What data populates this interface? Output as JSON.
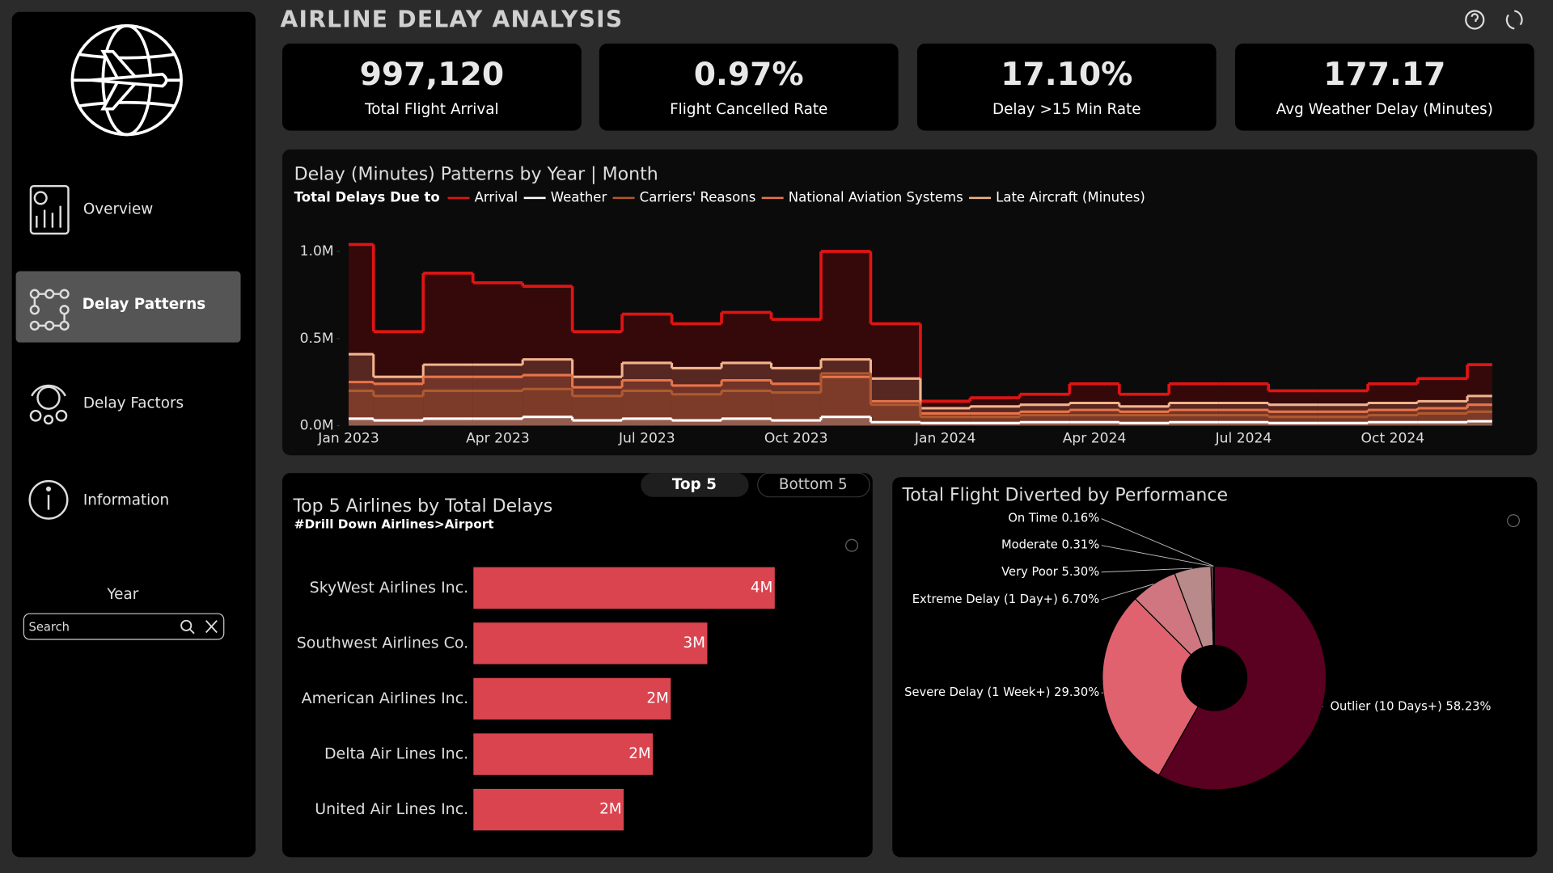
{
  "header": {
    "title": "AIRLINE DELAY ANALYSIS"
  },
  "kpis": [
    {
      "value": "997,120",
      "label": "Total Flight Arrival"
    },
    {
      "value": "0.97%",
      "label": "Flight Cancelled Rate"
    },
    {
      "value": "17.10%",
      "label": "Delay >15 Min Rate"
    },
    {
      "value": "177.17",
      "label": "Avg Weather Delay (Minutes)"
    }
  ],
  "nav": [
    "Overview",
    "Delay Patterns",
    "Delay Factors",
    "Information"
  ],
  "active_nav": 1,
  "filter": {
    "label": "Year",
    "placeholder": "Search"
  },
  "toggle": [
    "Top 5",
    "Bottom 5"
  ],
  "chart_data": [
    {
      "type": "line",
      "step": "mid",
      "title": "Delay (Minutes) Patterns by Year | Month",
      "legend_title": "Total Delays Due to",
      "x": [
        "Jan 2023",
        null,
        null,
        "Apr 2023",
        null,
        null,
        "Jul 2023",
        null,
        null,
        "Oct 2023",
        null,
        null,
        "Jan 2024",
        null,
        null,
        "Apr 2024",
        null,
        null,
        "Jul 2024",
        null,
        null,
        "Oct 2024",
        null,
        null
      ],
      "ylim": [
        0,
        1100000
      ],
      "yticks": [
        {
          "value": 0,
          "label": "0.0M"
        },
        {
          "value": 500000,
          "label": "0.5M"
        },
        {
          "value": 1000000,
          "label": "1.0M"
        }
      ],
      "series": [
        {
          "name": "Arrival",
          "color": "#e01414",
          "values": [
            1040000,
            540000,
            875000,
            820000,
            800000,
            540000,
            640000,
            585000,
            650000,
            610000,
            1000000,
            585000,
            140000,
            160000,
            180000,
            240000,
            180000,
            240000,
            240000,
            200000,
            200000,
            240000,
            270000,
            350000
          ]
        },
        {
          "name": "Weather",
          "color": "#ffffff",
          "values": [
            40000,
            30000,
            40000,
            40000,
            50000,
            30000,
            40000,
            30000,
            40000,
            30000,
            50000,
            20000,
            15000,
            15000,
            20000,
            20000,
            15000,
            20000,
            20000,
            15000,
            15000,
            20000,
            20000,
            25000
          ]
        },
        {
          "name": "Carriers' Reasons",
          "color": "#b05a30",
          "values": [
            200000,
            170000,
            200000,
            200000,
            210000,
            170000,
            200000,
            180000,
            200000,
            190000,
            300000,
            120000,
            50000,
            50000,
            60000,
            60000,
            60000,
            60000,
            60000,
            50000,
            50000,
            60000,
            70000,
            80000
          ]
        },
        {
          "name": "National Aviation Systems",
          "color": "#e8744a",
          "values": [
            250000,
            240000,
            280000,
            280000,
            290000,
            220000,
            260000,
            230000,
            260000,
            240000,
            280000,
            140000,
            70000,
            70000,
            80000,
            90000,
            80000,
            90000,
            90000,
            80000,
            80000,
            90000,
            100000,
            120000
          ]
        },
        {
          "name": "Late Aircraft (Minutes)",
          "color": "#f2b48e",
          "values": [
            410000,
            280000,
            350000,
            350000,
            380000,
            280000,
            360000,
            330000,
            360000,
            330000,
            380000,
            270000,
            100000,
            110000,
            120000,
            130000,
            110000,
            130000,
            130000,
            120000,
            120000,
            130000,
            140000,
            170000
          ]
        }
      ]
    },
    {
      "type": "bar",
      "orientation": "horizontal",
      "title": "Top 5 Airlines by Total Delays",
      "subtitle": "#Drill Down Airlines>Airport",
      "categories": [
        "SkyWest Airlines Inc.",
        "Southwest Airlines Co.",
        "American Airlines Inc.",
        "Delta Air Lines Inc.",
        "United Air Lines Inc."
      ],
      "values": [
        3.71,
        2.88,
        2.43,
        2.21,
        1.85
      ],
      "value_labels": [
        "4M",
        "3M",
        "2M",
        "2M",
        "2M"
      ],
      "color": "#d9444f"
    },
    {
      "type": "pie",
      "title": "Total Flight Diverted by Performance",
      "categories": [
        "On Time",
        "Moderate",
        "Very Poor",
        "Extreme Delay (1 Day+)",
        "Severe Delay (1 Week+)",
        "Outlier (10 Days+)"
      ],
      "values": [
        0.16,
        0.31,
        5.3,
        6.7,
        29.3,
        58.23
      ],
      "value_labels": [
        "0.16%",
        "0.31%",
        "5.30%",
        "6.70%",
        "29.30%",
        "58.23%"
      ],
      "colors": [
        "#6e2b3a",
        "#a06070",
        "#b98a8a",
        "#cf7680",
        "#e0626f",
        "#5a0020"
      ]
    }
  ]
}
